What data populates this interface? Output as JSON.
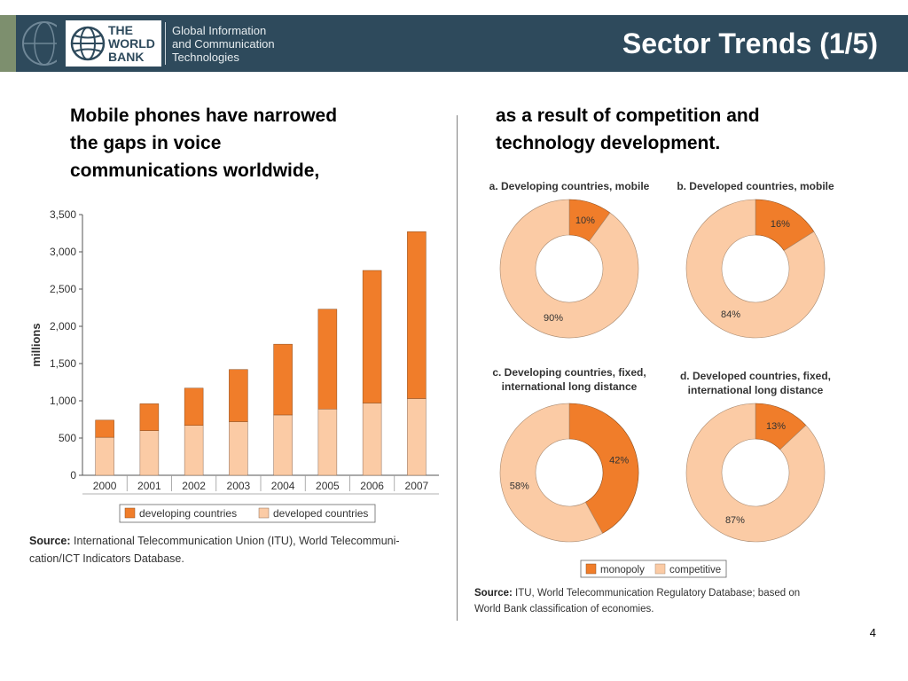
{
  "header": {
    "logo_lines": [
      "THE",
      "WORLD",
      "BANK"
    ],
    "dept_lines": [
      "Global Information",
      "and Communication",
      "Technologies"
    ],
    "title": "Sector Trends (1/5)"
  },
  "left_text": [
    "Mobile phones have narrowed",
    "the gaps in voice",
    "communications worldwide,"
  ],
  "right_text": [
    "as a result of competition and",
    "technology development."
  ],
  "left_source": {
    "label": "Source:",
    "line1": " International Telecommunication Union (ITU), World Telecommuni-",
    "line2": "cation/ICT Indicators Database."
  },
  "right_source": {
    "label": "Source:",
    "line1": " ITU, World Telecommunication Regulatory Database; based on",
    "line2": "World Bank classification of economies."
  },
  "page_number": "4",
  "colors": {
    "developing": "#f07d2a",
    "developed": "#fbcba5",
    "monopoly": "#f07d2a",
    "competitive": "#fbcba5"
  },
  "chart_data": [
    {
      "type": "bar",
      "stacked": true,
      "categories": [
        "2000",
        "2001",
        "2002",
        "2003",
        "2004",
        "2005",
        "2006",
        "2007"
      ],
      "series": [
        {
          "name": "developed countries",
          "values": [
            510,
            600,
            670,
            720,
            810,
            890,
            970,
            1030
          ]
        },
        {
          "name": "developing countries",
          "values": [
            230,
            360,
            500,
            700,
            950,
            1340,
            1780,
            2240
          ]
        }
      ],
      "ylabel": "millions",
      "ylim": [
        0,
        3500
      ],
      "yticks": [
        0,
        500,
        1000,
        1500,
        2000,
        2500,
        3000,
        3500
      ],
      "ytick_labels": [
        "0",
        "500",
        "1,000",
        "1,500",
        "2,000",
        "2,500",
        "3,000",
        "3,500"
      ],
      "legend": [
        "developing countries",
        "developed countries"
      ],
      "legend_position": "bottom",
      "grid": false
    },
    {
      "type": "pie",
      "panels": [
        {
          "title": [
            "a. Developing countries, mobile"
          ],
          "monopoly": 10,
          "competitive": 90,
          "monopoly_label": "10%",
          "competitive_label": "90%"
        },
        {
          "title": [
            "b. Developed countries, mobile"
          ],
          "monopoly": 16,
          "competitive": 84,
          "monopoly_label": "16%",
          "competitive_label": "84%"
        },
        {
          "title": [
            "c. Developing countries, fixed,",
            "international long distance"
          ],
          "monopoly": 42,
          "competitive": 58,
          "monopoly_label": "42%",
          "competitive_label": "58%"
        },
        {
          "title": [
            "d. Developed countries, fixed,",
            "international long distance"
          ],
          "monopoly": 13,
          "competitive": 87,
          "monopoly_label": "13%",
          "competitive_label": "87%"
        }
      ],
      "legend": [
        "monopoly",
        "competitive"
      ],
      "legend_position": "bottom"
    }
  ]
}
